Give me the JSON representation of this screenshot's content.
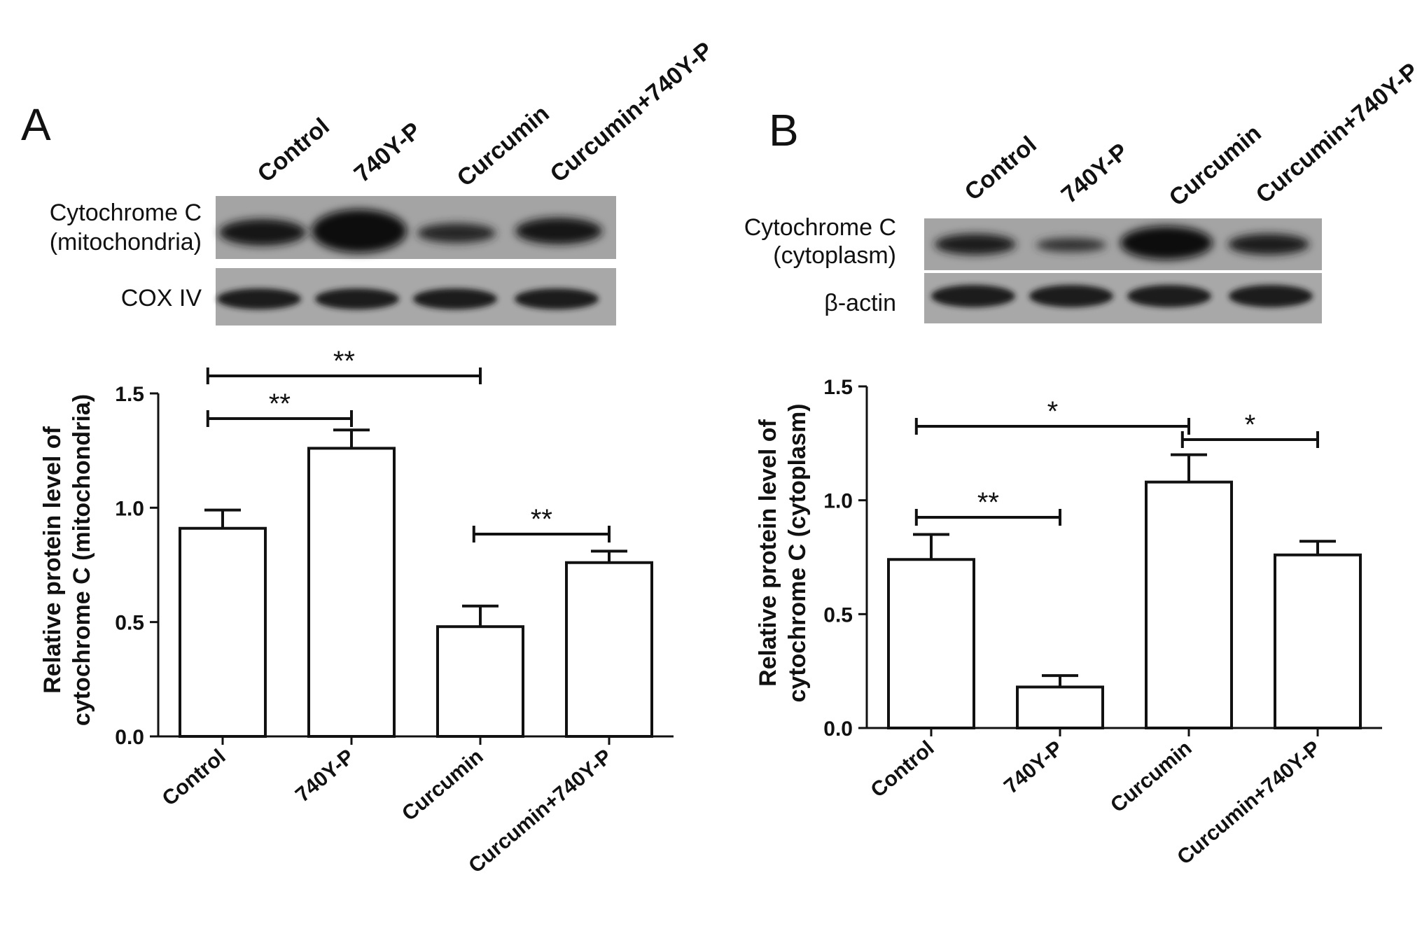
{
  "figure": {
    "panel_a": {
      "letter": "A",
      "blot": {
        "lane_labels": [
          "Control",
          "740Y-P",
          "Curcumin",
          "Curcumin+740Y-P"
        ],
        "row1_label_line1": "Cytochrome C",
        "row1_label_line2": "(mitochondria)",
        "row2_label": "COX IV"
      }
    },
    "panel_b": {
      "letter": "B",
      "blot": {
        "lane_labels": [
          "Control",
          "740Y-P",
          "Curcumin",
          "Curcumin+740Y-P"
        ],
        "row1_label_line1": "Cytochrome C",
        "row1_label_line2": "(cytoplasm)",
        "row2_label": "β-actin"
      }
    }
  },
  "chart_data": [
    {
      "type": "bar",
      "panel": "A",
      "categories": [
        "Control",
        "740Y-P",
        "Curcumin",
        "Curcumin+740Y-P"
      ],
      "values": [
        0.91,
        1.26,
        0.48,
        0.76
      ],
      "errors": [
        0.08,
        0.08,
        0.09,
        0.05
      ],
      "ylabel_line1": "Relative protein level of",
      "ylabel_line2": "cytochrome C (mitochondria)",
      "ylim": [
        0,
        1.5
      ],
      "yticks": [
        "0.0",
        "0.5",
        "1.0",
        "1.5"
      ],
      "significance": [
        {
          "from": 0,
          "to": 2,
          "label": "**"
        },
        {
          "from": 0,
          "to": 1,
          "label": "**"
        },
        {
          "from": 2,
          "to": 3,
          "label": "**"
        }
      ]
    },
    {
      "type": "bar",
      "panel": "B",
      "categories": [
        "Control",
        "740Y-P",
        "Curcumin",
        "Curcumin+740Y-P"
      ],
      "values": [
        0.74,
        0.18,
        1.08,
        0.76
      ],
      "errors": [
        0.11,
        0.05,
        0.12,
        0.06
      ],
      "ylabel_line1": "Relative protein level of",
      "ylabel_line2": "cytochrome C (cytoplasm)",
      "ylim": [
        0,
        1.5
      ],
      "yticks": [
        "0.0",
        "0.5",
        "1.0",
        "1.5"
      ],
      "significance": [
        {
          "from": 0,
          "to": 2,
          "label": "*"
        },
        {
          "from": 0,
          "to": 1,
          "label": "**"
        },
        {
          "from": 2,
          "to": 3,
          "label": "*"
        }
      ]
    }
  ]
}
